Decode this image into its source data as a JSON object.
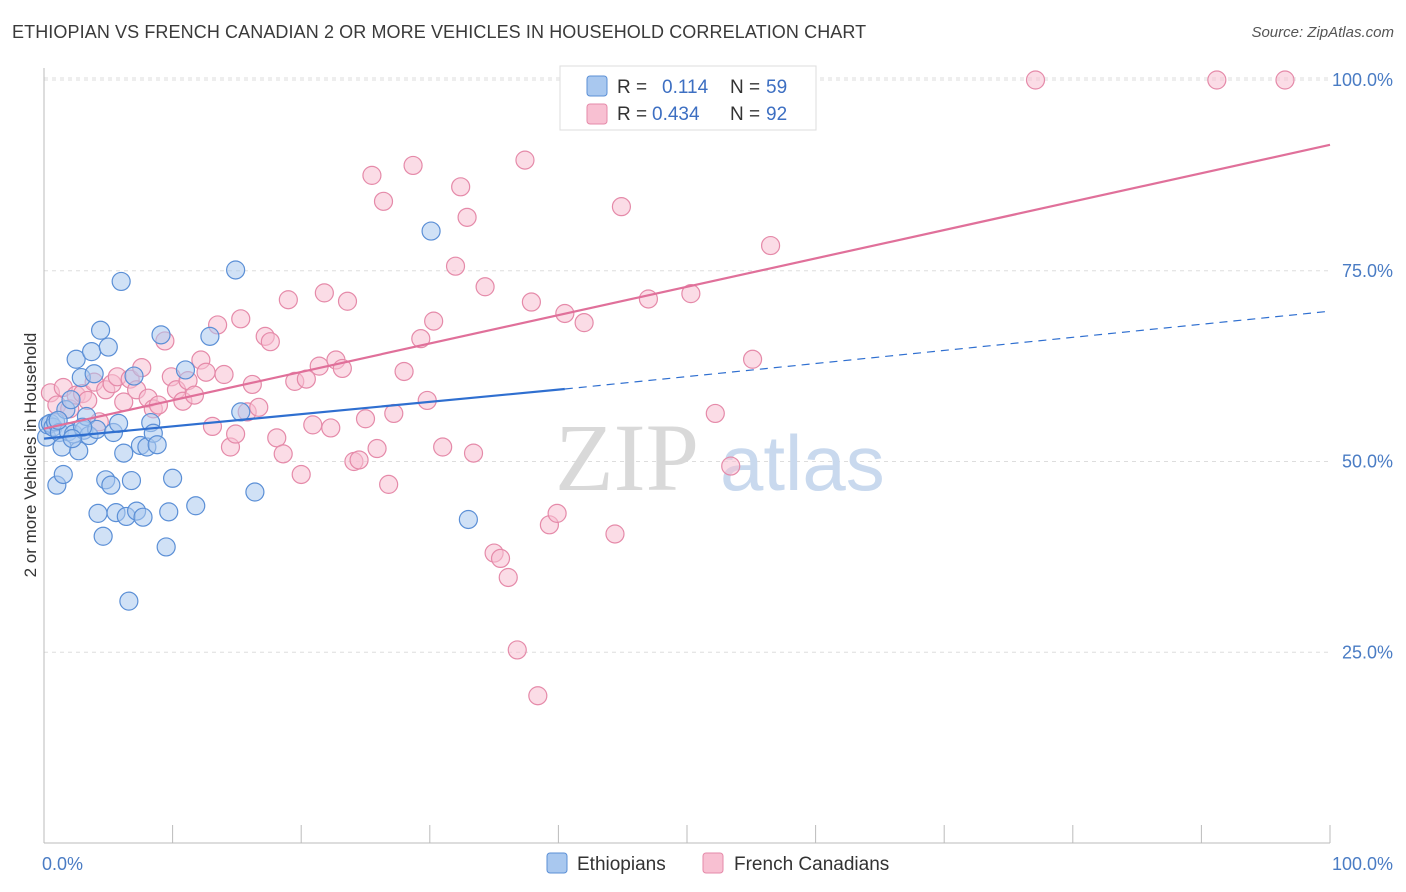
{
  "title": "ETHIOPIAN VS FRENCH CANADIAN 2 OR MORE VEHICLES IN HOUSEHOLD CORRELATION CHART",
  "source": "Source: ZipAtlas.com",
  "watermark": {
    "zip": "ZIP",
    "atlas": "atlas"
  },
  "colors": {
    "ethiopians_fill": "#a9c8ef",
    "ethiopians_stroke": "#5b8fd6",
    "ethiopians_line": "#2f6fd0",
    "french_fill": "#f8c0d2",
    "french_stroke": "#e58aa9",
    "french_line": "#e0709a",
    "grid": "#dddddd",
    "tick_label": "#4a7cc4"
  },
  "legend": {
    "rows": [
      {
        "r_label": "R = ",
        "r_value": "0.114",
        "n_label": "N = ",
        "n_value": "59",
        "series": "ethiopians"
      },
      {
        "r_label": "R = ",
        "r_value": "0.434",
        "n_label": "N = ",
        "n_value": "92",
        "series": "french"
      }
    ]
  },
  "bottom_legend": [
    "Ethiopians",
    "French Canadians"
  ],
  "chart_data": {
    "type": "scatter",
    "title": "ETHIOPIAN VS FRENCH CANADIAN 2 OR MORE VEHICLES IN HOUSEHOLD CORRELATION CHART",
    "xlabel": "",
    "ylabel": "2 or more Vehicles in Household",
    "xlim": [
      0,
      100
    ],
    "ylim": [
      0,
      104
    ],
    "x_tick_labels": [
      "0.0%",
      "100.0%"
    ],
    "y_ticks": [
      25,
      50,
      75,
      100
    ],
    "y_tick_labels": [
      "25.0%",
      "50.0%",
      "75.0%",
      "100.0%"
    ],
    "grid": true,
    "legend_placement": "top-center",
    "series": [
      {
        "name": "Ethiopians",
        "r": 0.114,
        "n": 59,
        "trend": {
          "x0": 0,
          "y0": 53.0,
          "x1": 40.5,
          "y1": 59.5,
          "dashed_to_x": 100,
          "dashed_to_y": 69.7
        },
        "points": [
          [
            0.2,
            53.2
          ],
          [
            0.3,
            54.8
          ],
          [
            0.5,
            55.0
          ],
          [
            0.7,
            54.5
          ],
          [
            0.9,
            55.2
          ],
          [
            1.0,
            46.9
          ],
          [
            1.2,
            53.8
          ],
          [
            1.4,
            51.9
          ],
          [
            1.5,
            48.3
          ],
          [
            1.7,
            56.8
          ],
          [
            1.9,
            53.9
          ],
          [
            2.1,
            58.1
          ],
          [
            2.3,
            53.6
          ],
          [
            2.5,
            63.4
          ],
          [
            2.7,
            51.4
          ],
          [
            2.9,
            61.0
          ],
          [
            3.1,
            54.1
          ],
          [
            3.3,
            55.9
          ],
          [
            3.5,
            53.4
          ],
          [
            3.7,
            64.4
          ],
          [
            3.9,
            61.5
          ],
          [
            4.1,
            54.2
          ],
          [
            4.2,
            43.2
          ],
          [
            4.4,
            67.2
          ],
          [
            4.6,
            40.2
          ],
          [
            4.8,
            47.6
          ],
          [
            5.0,
            65.0
          ],
          [
            5.2,
            46.9
          ],
          [
            5.4,
            53.8
          ],
          [
            5.6,
            43.3
          ],
          [
            5.8,
            55.0
          ],
          [
            6.0,
            73.6
          ],
          [
            6.2,
            51.1
          ],
          [
            6.4,
            42.8
          ],
          [
            6.6,
            31.7
          ],
          [
            6.8,
            47.5
          ],
          [
            7.0,
            61.2
          ],
          [
            7.2,
            43.5
          ],
          [
            7.5,
            52.1
          ],
          [
            7.7,
            42.7
          ],
          [
            8.0,
            51.9
          ],
          [
            8.3,
            55.1
          ],
          [
            8.5,
            53.7
          ],
          [
            8.8,
            52.2
          ],
          [
            9.1,
            66.6
          ],
          [
            9.5,
            38.8
          ],
          [
            9.7,
            43.4
          ],
          [
            10.0,
            47.8
          ],
          [
            11.0,
            62.0
          ],
          [
            11.8,
            44.2
          ],
          [
            12.9,
            66.4
          ],
          [
            14.9,
            75.1
          ],
          [
            15.3,
            56.5
          ],
          [
            16.4,
            46.0
          ],
          [
            30.1,
            80.2
          ],
          [
            33.0,
            42.4
          ],
          [
            3.0,
            54.5
          ],
          [
            2.2,
            53.0
          ],
          [
            1.1,
            55.4
          ]
        ]
      },
      {
        "name": "French Canadians",
        "r": 0.434,
        "n": 92,
        "trend": {
          "x0": 0,
          "y0": 54.3,
          "x1": 100,
          "y1": 91.5
        },
        "points": [
          [
            0.5,
            59.0
          ],
          [
            1.0,
            57.4
          ],
          [
            1.5,
            59.7
          ],
          [
            2.0,
            56.9
          ],
          [
            2.5,
            58.7
          ],
          [
            3.0,
            58.9
          ],
          [
            3.4,
            58.0
          ],
          [
            3.9,
            60.4
          ],
          [
            4.3,
            55.2
          ],
          [
            4.8,
            59.4
          ],
          [
            5.3,
            60.2
          ],
          [
            5.7,
            61.1
          ],
          [
            6.2,
            57.8
          ],
          [
            6.7,
            60.8
          ],
          [
            7.2,
            59.4
          ],
          [
            7.6,
            62.3
          ],
          [
            8.1,
            58.3
          ],
          [
            8.5,
            56.9
          ],
          [
            8.9,
            57.4
          ],
          [
            9.4,
            65.8
          ],
          [
            9.9,
            61.1
          ],
          [
            10.3,
            59.4
          ],
          [
            10.8,
            57.9
          ],
          [
            11.2,
            60.6
          ],
          [
            11.7,
            58.7
          ],
          [
            12.2,
            63.3
          ],
          [
            12.6,
            61.7
          ],
          [
            13.1,
            54.6
          ],
          [
            13.5,
            67.9
          ],
          [
            14.0,
            61.4
          ],
          [
            14.5,
            51.9
          ],
          [
            14.9,
            53.6
          ],
          [
            15.3,
            68.7
          ],
          [
            15.8,
            56.5
          ],
          [
            16.2,
            60.1
          ],
          [
            16.7,
            57.1
          ],
          [
            17.2,
            66.4
          ],
          [
            17.6,
            65.7
          ],
          [
            18.1,
            53.1
          ],
          [
            18.6,
            51.0
          ],
          [
            19.0,
            71.2
          ],
          [
            19.5,
            60.5
          ],
          [
            20.0,
            48.3
          ],
          [
            20.4,
            60.8
          ],
          [
            20.9,
            54.8
          ],
          [
            21.4,
            62.5
          ],
          [
            21.8,
            72.1
          ],
          [
            22.3,
            54.4
          ],
          [
            22.7,
            63.3
          ],
          [
            23.2,
            62.2
          ],
          [
            23.6,
            71.0
          ],
          [
            24.1,
            50.0
          ],
          [
            24.5,
            50.2
          ],
          [
            25.0,
            55.6
          ],
          [
            25.5,
            87.5
          ],
          [
            25.9,
            51.7
          ],
          [
            26.4,
            84.1
          ],
          [
            26.8,
            47.0
          ],
          [
            27.2,
            56.3
          ],
          [
            28.0,
            61.8
          ],
          [
            28.7,
            88.8
          ],
          [
            29.3,
            66.1
          ],
          [
            29.8,
            58.0
          ],
          [
            30.3,
            68.4
          ],
          [
            31.0,
            51.9
          ],
          [
            32.0,
            75.6
          ],
          [
            32.4,
            86.0
          ],
          [
            32.9,
            82.0
          ],
          [
            33.4,
            51.1
          ],
          [
            34.3,
            72.9
          ],
          [
            35.0,
            38.0
          ],
          [
            35.5,
            37.3
          ],
          [
            36.1,
            34.8
          ],
          [
            36.8,
            25.3
          ],
          [
            37.4,
            89.5
          ],
          [
            37.9,
            70.9
          ],
          [
            38.4,
            19.3
          ],
          [
            39.3,
            41.7
          ],
          [
            39.9,
            43.2
          ],
          [
            40.5,
            69.4
          ],
          [
            42.0,
            68.2
          ],
          [
            44.4,
            40.5
          ],
          [
            44.9,
            83.4
          ],
          [
            47.0,
            71.3
          ],
          [
            50.3,
            72.0
          ],
          [
            52.2,
            56.3
          ],
          [
            53.4,
            49.4
          ],
          [
            55.1,
            63.4
          ],
          [
            56.5,
            78.3
          ],
          [
            77.1,
            100.0
          ],
          [
            91.2,
            100.0
          ],
          [
            96.5,
            100.0
          ]
        ]
      }
    ]
  }
}
